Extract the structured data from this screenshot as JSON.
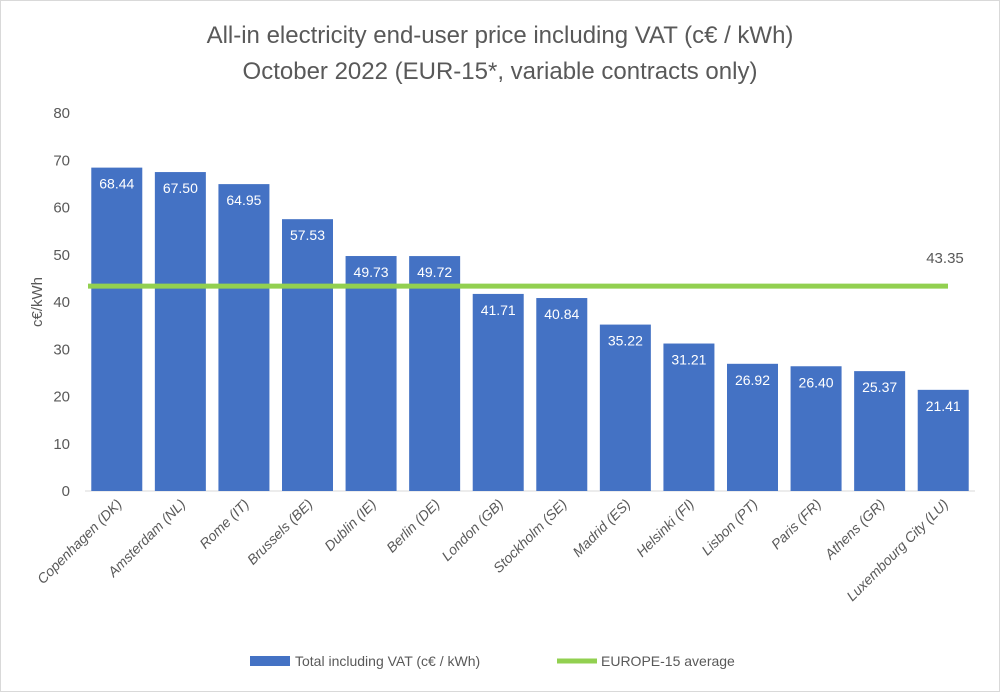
{
  "chart_data": {
    "type": "bar",
    "title": "All-in electricity end-user price including VAT (c€ / kWh)",
    "subtitle": "October 2022 (EUR-15*, variable contracts only)",
    "ylabel": "c€/kWh",
    "xlabel": "",
    "ylim": [
      0,
      80
    ],
    "yticks": [
      0,
      10,
      20,
      30,
      40,
      50,
      60,
      70,
      80
    ],
    "grid": false,
    "legend_position": "bottom",
    "categories": [
      "Copenhagen (DK)",
      "Amsterdam (NL)",
      "Rome (IT)",
      "Brussels (BE)",
      "Dublin (IE)",
      "Berlin (DE)",
      "London (GB)",
      "Stockholm (SE)",
      "Madrid (ES)",
      "Helsinki (FI)",
      "Lisbon (PT)",
      "Paris (FR)",
      "Athens (GR)",
      "Luxembourg City (LU)"
    ],
    "series": [
      {
        "name": "Total including VAT (c€ / kWh)",
        "type": "bar",
        "color": "#4472C4",
        "values": [
          68.44,
          67.5,
          64.95,
          57.53,
          49.73,
          49.72,
          41.71,
          40.84,
          35.22,
          31.21,
          26.92,
          26.4,
          25.37,
          21.41
        ],
        "labels": [
          "68.44",
          "67.50",
          "64.95",
          "57.53",
          "49.73",
          "49.72",
          "41.71",
          "40.84",
          "35.22",
          "31.21",
          "26.92",
          "26.40",
          "25.37",
          "21.41"
        ]
      },
      {
        "name": "EUROPE-15 average",
        "type": "line",
        "color": "#92D050",
        "value": 43.35,
        "label": "43.35"
      }
    ]
  }
}
